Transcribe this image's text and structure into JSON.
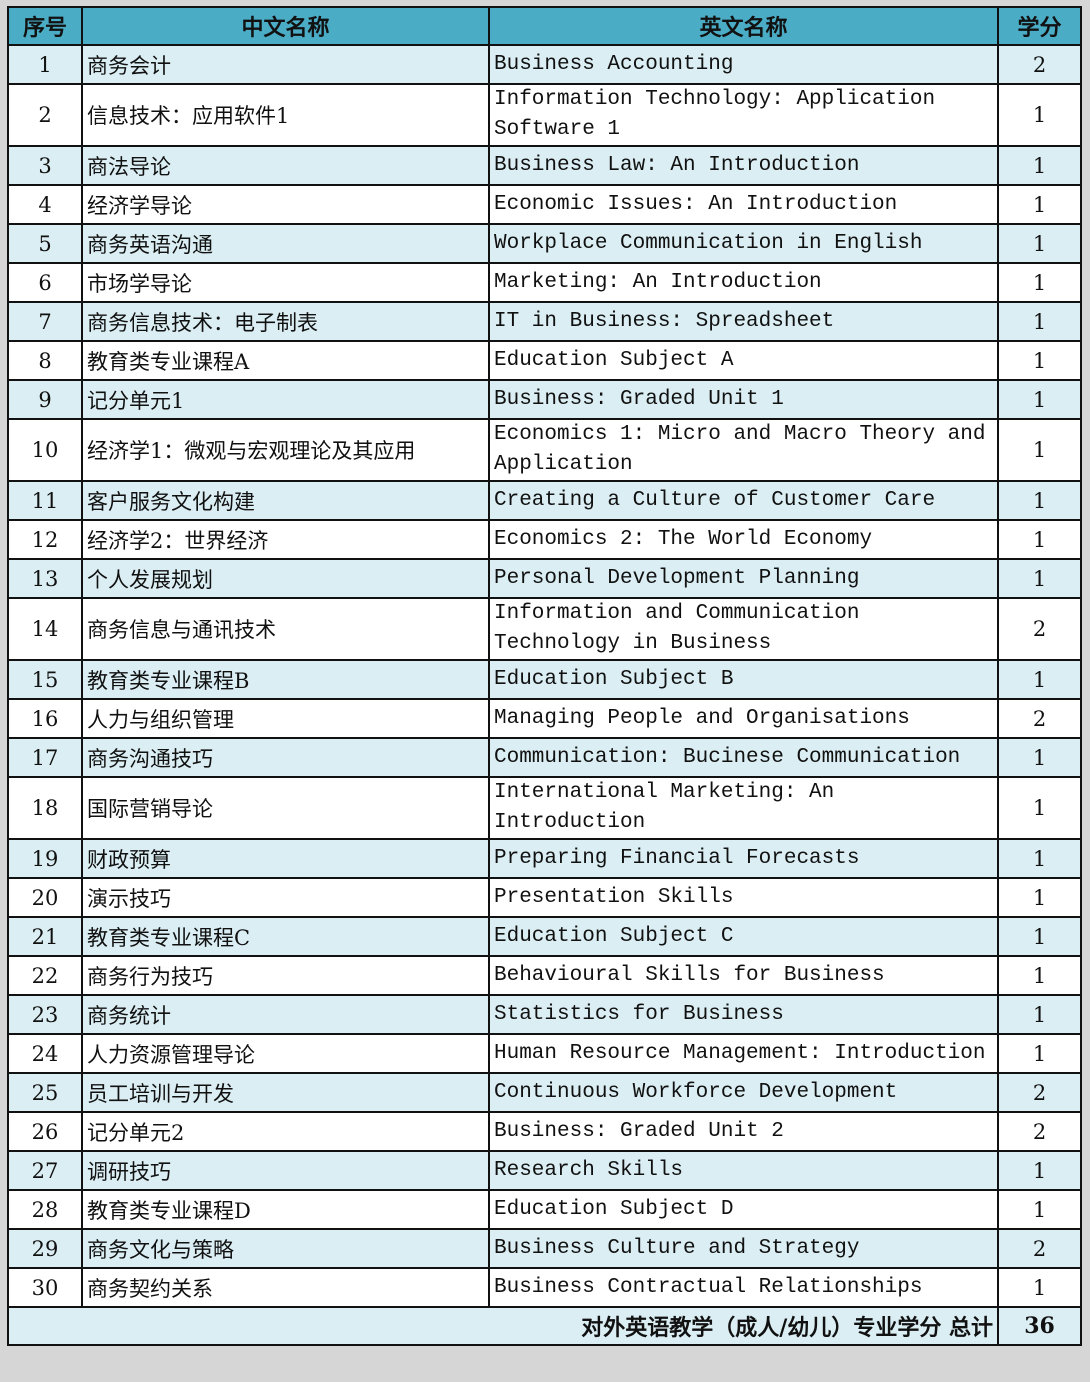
{
  "header": {
    "no": "序号",
    "cn": "中文名称",
    "en": "英文名称",
    "credit": "学分"
  },
  "rows": [
    {
      "no": "1",
      "cn": "商务会计",
      "en": "Business Accounting",
      "credit": "2"
    },
    {
      "no": "2",
      "cn": "信息技术：应用软件1",
      "en": "Information Technology: Application Software 1",
      "credit": "1"
    },
    {
      "no": "3",
      "cn": "商法导论",
      "en": "Business Law: An Introduction",
      "credit": "1"
    },
    {
      "no": "4",
      "cn": "经济学导论",
      "en": "Economic Issues: An Introduction",
      "credit": "1"
    },
    {
      "no": "5",
      "cn": "商务英语沟通",
      "en": "Workplace Communication in English",
      "credit": "1"
    },
    {
      "no": "6",
      "cn": "市场学导论",
      "en": "Marketing: An Introduction",
      "credit": "1"
    },
    {
      "no": "7",
      "cn": "商务信息技术：电子制表",
      "en": "IT in Business: Spreadsheet",
      "credit": "1"
    },
    {
      "no": "8",
      "cn": "教育类专业课程A",
      "en": "Education Subject A",
      "credit": "1"
    },
    {
      "no": "9",
      "cn": "记分单元1",
      "en": "Business: Graded Unit 1",
      "credit": "1"
    },
    {
      "no": "10",
      "cn": "经济学1：微观与宏观理论及其应用",
      "en": "Economics 1: Micro and Macro Theory and Application",
      "credit": "1"
    },
    {
      "no": "11",
      "cn": "客户服务文化构建",
      "en": "Creating a Culture of Customer Care",
      "credit": "1"
    },
    {
      "no": "12",
      "cn": "经济学2：世界经济",
      "en": "Economics 2: The World Economy",
      "credit": "1"
    },
    {
      "no": "13",
      "cn": "个人发展规划",
      "en": "Personal Development Planning",
      "credit": "1"
    },
    {
      "no": "14",
      "cn": "商务信息与通讯技术",
      "en": "Information and Communication Technology in Business",
      "credit": "2"
    },
    {
      "no": "15",
      "cn": "教育类专业课程B",
      "en": "Education Subject B",
      "credit": "1"
    },
    {
      "no": "16",
      "cn": "人力与组织管理",
      "en": "Managing People and Organisations",
      "credit": "2"
    },
    {
      "no": "17",
      "cn": "商务沟通技巧",
      "en": "Communication: Bucinese Communication",
      "credit": "1"
    },
    {
      "no": "18",
      "cn": "国际营销导论",
      "en": "International Marketing: An Introduction",
      "credit": "1"
    },
    {
      "no": "19",
      "cn": "财政预算",
      "en": "Preparing Financial Forecasts",
      "credit": "1"
    },
    {
      "no": "20",
      "cn": "演示技巧",
      "en": "Presentation Skills",
      "credit": "1"
    },
    {
      "no": "21",
      "cn": "教育类专业课程C",
      "en": "Education Subject C",
      "credit": "1"
    },
    {
      "no": "22",
      "cn": "商务行为技巧",
      "en": "Behavioural Skills for Business",
      "credit": "1"
    },
    {
      "no": "23",
      "cn": "商务统计",
      "en": "Statistics for Business",
      "credit": "1"
    },
    {
      "no": "24",
      "cn": "人力资源管理导论",
      "en": "Human Resource Management: Introduction",
      "credit": "1"
    },
    {
      "no": "25",
      "cn": "员工培训与开发",
      "en": "Continuous Workforce Development",
      "credit": "2"
    },
    {
      "no": "26",
      "cn": "记分单元2",
      "en": "Business: Graded Unit 2",
      "credit": "2"
    },
    {
      "no": "27",
      "cn": "调研技巧",
      "en": "Research Skills",
      "credit": "1"
    },
    {
      "no": "28",
      "cn": "教育类专业课程D",
      "en": "Education Subject D",
      "credit": "1"
    },
    {
      "no": "29",
      "cn": "商务文化与策略",
      "en": "Business Culture and Strategy",
      "credit": "2"
    },
    {
      "no": "30",
      "cn": "商务契约关系",
      "en": "Business Contractual Relationships",
      "credit": "1"
    }
  ],
  "total": {
    "label": "对外英语教学（成人/幼儿）专业学分 总计",
    "value": "36"
  },
  "colors": {
    "header": "#4bacc6",
    "alt_row": "#dbeef3"
  }
}
